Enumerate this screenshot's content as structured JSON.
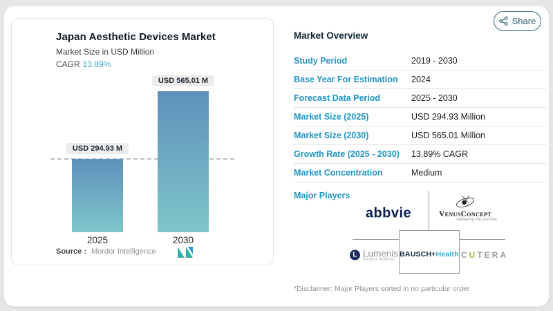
{
  "share": {
    "label": "Share",
    "icon": "share-nodes"
  },
  "chart": {
    "title": "Japan Aesthetic Devices Market",
    "subtitle": "Market Size in USD Million",
    "cagr_label": "CAGR",
    "cagr_value": "13.89%",
    "source_label": "Source :",
    "source_value": "Mordor Intelligence",
    "logo": "mordor-intelligence-monogram"
  },
  "chart_data": {
    "type": "bar",
    "title": "Japan Aesthetic Devices Market",
    "subtitle": "Market Size in USD Million",
    "categories": [
      "2025",
      "2030"
    ],
    "values": [
      294.93,
      565.01
    ],
    "value_labels": [
      "USD 294.93 M",
      "USD 565.01 M"
    ],
    "unit": "USD Million",
    "cagr": "13.89%",
    "ylim": [
      0,
      565.01
    ],
    "grid": false,
    "bar_gradient": [
      "#5e90b9",
      "#7fc6cb"
    ],
    "reference_line": {
      "at": 294.93,
      "style": "dashed"
    }
  },
  "overview": {
    "title": "Market Overview",
    "rows": [
      {
        "label": "Study Period",
        "value": "2019 - 2030"
      },
      {
        "label": "Base Year For Estimation",
        "value": "2024"
      },
      {
        "label": "Forecast Data Period",
        "value": "2025 - 2030"
      },
      {
        "label": "Market Size (2025)",
        "value": "USD 294.93 Million"
      },
      {
        "label": "Market Size (2030)",
        "value": "USD 565.01 Million"
      },
      {
        "label": "Growth Rate (2025 - 2030)",
        "value": "13.89% CAGR"
      },
      {
        "label": "Market Concentration",
        "value": "Medium"
      }
    ],
    "major_players_label": "Major Players",
    "players": {
      "abbvie": {
        "name": "abbvie"
      },
      "venus": {
        "name": "VenusConcept",
        "tagline": "delivering the promise"
      },
      "lumenis": {
        "icon_letter": "L",
        "name": "Lumenis",
        "tagline": "Energy to Healthcare"
      },
      "bausch": {
        "part1": "BAUSCH+",
        "part2": "Health"
      },
      "cutera": {
        "parts": [
          "C",
          "U",
          "TERA"
        ]
      }
    },
    "disclaimer": "*Disclaimer: Major Players sorted in no particular order"
  },
  "colors": {
    "accent_blue": "#2095c3",
    "cagr_teal": "#3aa9c9",
    "share_teal": "#2b5d6f",
    "bar_top": "#5e90b9",
    "bar_bottom": "#7fc6cb"
  }
}
